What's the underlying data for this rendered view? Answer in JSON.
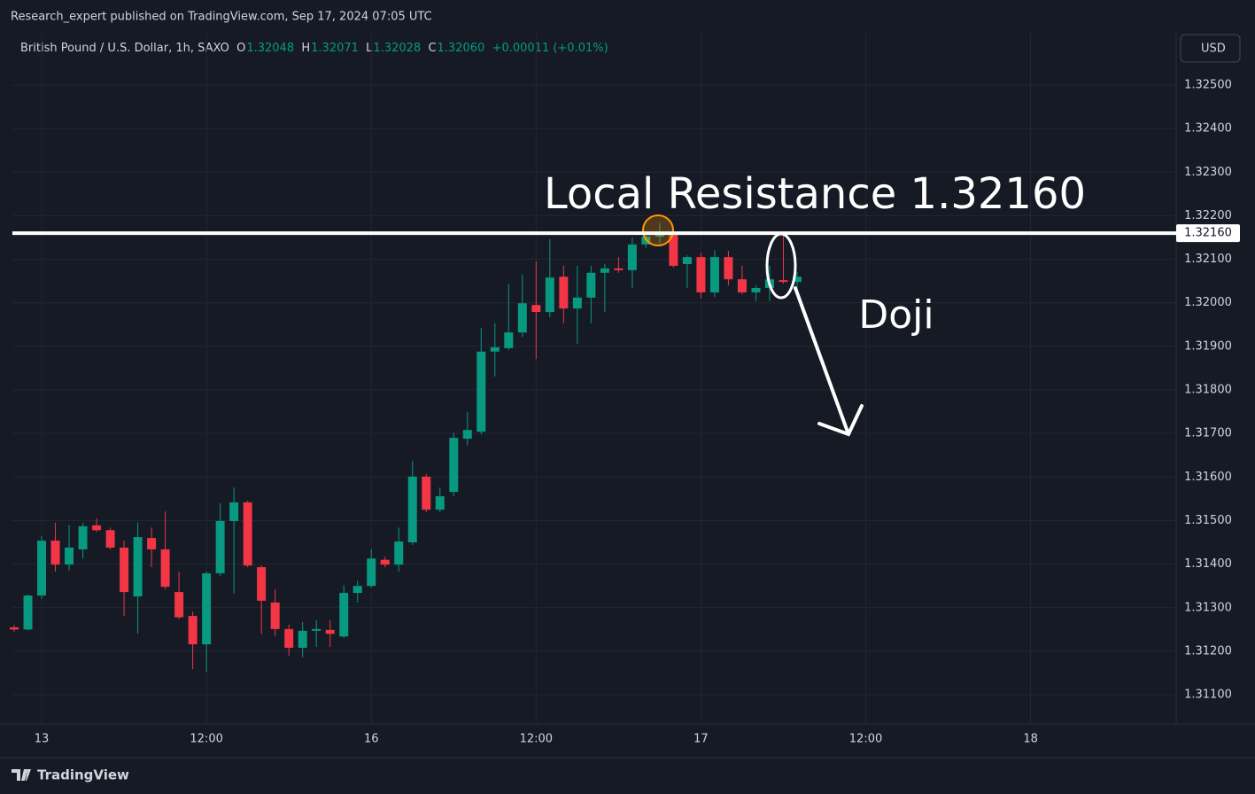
{
  "header": {
    "publisher": "Research_expert published on TradingView.com, Sep 17, 2024 07:05 UTC",
    "symbol": "British Pound / U.S. Dollar, 1h, SAXO",
    "ohlc": [
      {
        "key": "O",
        "value": "1.32048"
      },
      {
        "key": "H",
        "value": "1.32071"
      },
      {
        "key": "L",
        "value": "1.32028"
      },
      {
        "key": "C",
        "value": "1.32060"
      }
    ],
    "change": "+0.00011 (+0.01%)"
  },
  "currency": "USD",
  "footer": "TradingView",
  "chart_data": {
    "type": "candlestick",
    "up_color": "#089981",
    "down_color": "#f23645",
    "grid": true,
    "open": [
      1.31255,
      1.3125,
      1.31328,
      1.31454,
      1.31399,
      1.31434,
      1.31489,
      1.31478,
      1.31438,
      1.31326,
      1.3146,
      1.31434,
      1.31336,
      1.31281,
      1.31216,
      1.31379,
      1.31499,
      1.31542,
      1.31393,
      1.31312,
      1.31251,
      1.31208,
      1.31247,
      1.31249,
      1.31234,
      1.31334,
      1.3135,
      1.3141,
      1.31399,
      1.3145,
      1.31601,
      1.31525,
      1.31566,
      1.31688,
      1.31704,
      1.31888,
      1.31896,
      1.31932,
      1.31995,
      1.31979,
      1.3206,
      1.31987,
      1.32012,
      1.32069,
      1.32079,
      1.32075,
      1.32134,
      1.32152,
      1.32156,
      1.32089,
      1.32105,
      1.32024,
      1.32105,
      1.32054,
      1.32024,
      1.32034,
      1.32052,
      1.32048
    ],
    "high": [
      1.3126,
      1.3133,
      1.31464,
      1.31495,
      1.3149,
      1.31495,
      1.31505,
      1.31484,
      1.31454,
      1.31495,
      1.31484,
      1.31521,
      1.31383,
      1.31291,
      1.31383,
      1.3154,
      1.31576,
      1.31546,
      1.31397,
      1.31342,
      1.31261,
      1.31267,
      1.31271,
      1.31271,
      1.31352,
      1.31362,
      1.31434,
      1.31417,
      1.31484,
      1.31637,
      1.31607,
      1.31576,
      1.31702,
      1.31749,
      1.31942,
      1.31953,
      1.32044,
      1.32065,
      1.32095,
      1.32146,
      1.32085,
      1.32085,
      1.32085,
      1.32089,
      1.32105,
      1.3215,
      1.32162,
      1.32183,
      1.32162,
      1.32109,
      1.32115,
      1.32121,
      1.32119,
      1.32085,
      1.3204,
      1.32085,
      1.32156,
      1.32071
    ],
    "low": [
      1.31245,
      1.31248,
      1.3132,
      1.31383,
      1.31385,
      1.31413,
      1.31474,
      1.31434,
      1.31281,
      1.3124,
      1.31393,
      1.31342,
      1.31274,
      1.31159,
      1.31153,
      1.31373,
      1.31332,
      1.31393,
      1.3124,
      1.31234,
      1.3119,
      1.31186,
      1.3121,
      1.3121,
      1.3123,
      1.31312,
      1.31346,
      1.31393,
      1.31383,
      1.31444,
      1.31519,
      1.31519,
      1.31556,
      1.31672,
      1.31698,
      1.31831,
      1.31892,
      1.31922,
      1.31871,
      1.31967,
      1.31953,
      1.31906,
      1.31953,
      1.31979,
      1.32069,
      1.32034,
      1.32126,
      1.32136,
      1.32081,
      1.32034,
      1.3201,
      1.32014,
      1.3204,
      1.3202,
      1.32004,
      1.32004,
      1.32044,
      1.32028
    ],
    "close": [
      1.3125,
      1.31328,
      1.31454,
      1.31399,
      1.31438,
      1.31487,
      1.31478,
      1.31438,
      1.31336,
      1.31462,
      1.31434,
      1.31348,
      1.31278,
      1.31216,
      1.31379,
      1.31499,
      1.31542,
      1.31397,
      1.31316,
      1.31251,
      1.31208,
      1.31247,
      1.31251,
      1.3124,
      1.31334,
      1.3135,
      1.31413,
      1.31399,
      1.31452,
      1.31601,
      1.31525,
      1.31556,
      1.3169,
      1.31708,
      1.31888,
      1.31898,
      1.31932,
      1.31999,
      1.31979,
      1.32058,
      1.31987,
      1.32012,
      1.32069,
      1.32079,
      1.32075,
      1.32134,
      1.32152,
      1.32156,
      1.32085,
      1.32105,
      1.32024,
      1.32105,
      1.32054,
      1.32024,
      1.32034,
      1.32054,
      1.32048,
      1.3206
    ],
    "xlim": [
      -0.13,
      84.6
    ],
    "xticks": [
      {
        "value": 2,
        "label": "13"
      },
      {
        "value": 14,
        "label": "12:00"
      },
      {
        "value": 26,
        "label": "16"
      },
      {
        "value": 38,
        "label": "12:00"
      },
      {
        "value": 50,
        "label": "17"
      },
      {
        "value": 62,
        "label": "12:00"
      },
      {
        "value": 74,
        "label": "18"
      }
    ],
    "ylim": [
      1.31033,
      1.3262
    ],
    "yticks": [
      {
        "value": 1.325,
        "label": "1.32500"
      },
      {
        "value": 1.324,
        "label": "1.32400"
      },
      {
        "value": 1.323,
        "label": "1.32300"
      },
      {
        "value": 1.322,
        "label": "1.32200"
      },
      {
        "value": 1.321,
        "label": "1.32100"
      },
      {
        "value": 1.32,
        "label": "1.32000"
      },
      {
        "value": 1.319,
        "label": "1.31900"
      },
      {
        "value": 1.318,
        "label": "1.31800"
      },
      {
        "value": 1.317,
        "label": "1.31700"
      },
      {
        "value": 1.316,
        "label": "1.31600"
      },
      {
        "value": 1.315,
        "label": "1.31500"
      },
      {
        "value": 1.314,
        "label": "1.31400"
      },
      {
        "value": 1.313,
        "label": "1.31300"
      },
      {
        "value": 1.312,
        "label": "1.31200"
      },
      {
        "value": 1.311,
        "label": "1.31100"
      }
    ],
    "resistance": {
      "value": 1.3216,
      "label": "1.32160"
    },
    "annotations": [
      "Local Resistance 1.32160",
      "Doji"
    ]
  }
}
